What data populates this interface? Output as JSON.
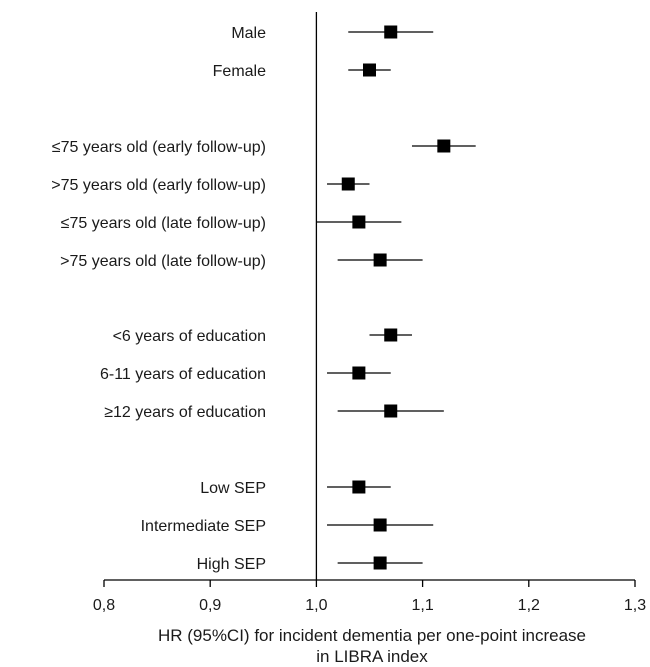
{
  "chart_data": {
    "type": "forest",
    "xlabel_lines": [
      "HR (95%CI) for incident dementia per one-point increase",
      "in LIBRA index"
    ],
    "xlim": [
      0.8,
      1.3
    ],
    "reference_line": 1.0,
    "ticks": [
      0.8,
      0.9,
      1.0,
      1.1,
      1.2,
      1.3
    ],
    "tick_labels": [
      "0,8",
      "0,9",
      "1,0",
      "1,1",
      "1,2",
      "1,3"
    ],
    "marker_color": "#000000",
    "rows": [
      {
        "label": "Male",
        "hr": 1.07,
        "lower": 1.03,
        "upper": 1.11
      },
      {
        "label": "Female",
        "hr": 1.05,
        "lower": 1.03,
        "upper": 1.07
      },
      {
        "label": "≤75 years old (early follow-up)",
        "hr": 1.12,
        "lower": 1.09,
        "upper": 1.15
      },
      {
        "label": ">75 years old (early follow-up)",
        "hr": 1.03,
        "lower": 1.01,
        "upper": 1.05
      },
      {
        "label": "≤75 years old (late follow-up)",
        "hr": 1.04,
        "lower": 1.0,
        "upper": 1.08
      },
      {
        "label": ">75 years old (late follow-up)",
        "hr": 1.06,
        "lower": 1.02,
        "upper": 1.1
      },
      {
        "label": "<6 years of education",
        "hr": 1.07,
        "lower": 1.05,
        "upper": 1.09
      },
      {
        "label": "6-11 years of education",
        "hr": 1.04,
        "lower": 1.01,
        "upper": 1.07
      },
      {
        "label": "≥12 years of education",
        "hr": 1.07,
        "lower": 1.02,
        "upper": 1.12
      },
      {
        "label": "Low SEP",
        "hr": 1.04,
        "lower": 1.01,
        "upper": 1.07
      },
      {
        "label": "Intermediate SEP",
        "hr": 1.06,
        "lower": 1.01,
        "upper": 1.11
      },
      {
        "label": "High SEP",
        "hr": 1.06,
        "lower": 1.02,
        "upper": 1.1
      }
    ]
  }
}
